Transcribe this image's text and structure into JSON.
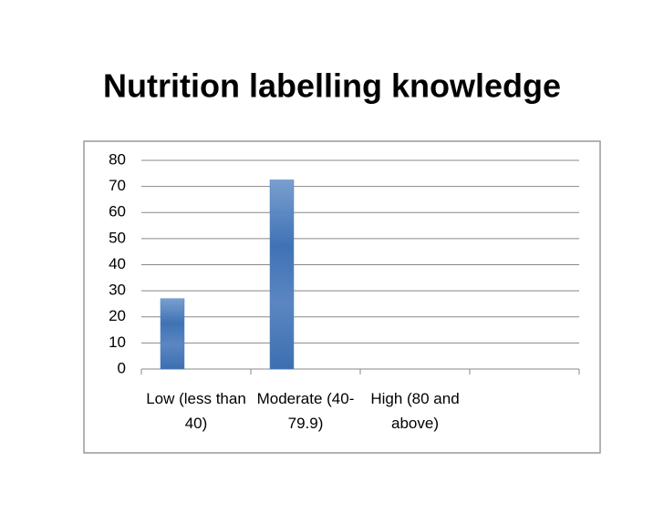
{
  "chart_data": {
    "type": "bar",
    "title": "Nutrition labelling knowledge",
    "categories": [
      "Low (less than 40)",
      "Moderate (40-79.9)",
      "High (80 and above)",
      null
    ],
    "values": [
      27,
      72.5,
      null,
      null
    ],
    "color": "#4f81bd",
    "ylim": [
      0,
      80
    ],
    "yticks": [
      0,
      10,
      20,
      30,
      40,
      50,
      60,
      70,
      80
    ],
    "grid": true
  }
}
